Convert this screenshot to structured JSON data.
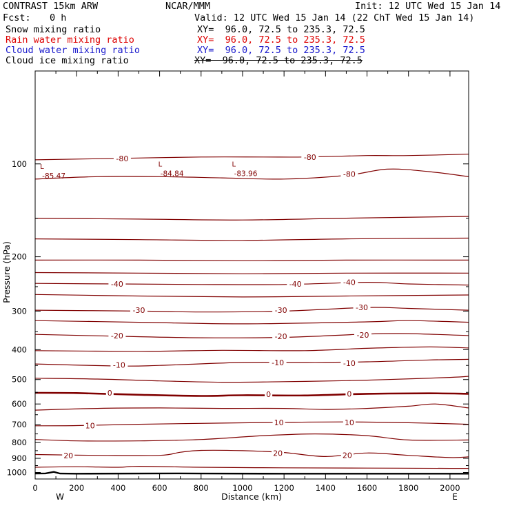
{
  "header": {
    "model": "CONTRAST 15km ARW",
    "center": "NCAR/MMM",
    "init": "Init: 12 UTC Wed 15 Jan 14",
    "fcst_label": "Fcst:",
    "fcst_value": "0 h",
    "valid": "Valid: 12 UTC Wed 15 Jan 14 (22 ChT Wed 15 Jan 14)",
    "fields": [
      {
        "label": "Snow mixing ratio",
        "xy": "XY=  96.0, 72.5 to 235.3, 72.5",
        "color": "#000000"
      },
      {
        "label": "Rain water mixing ratio",
        "xy": "XY=  96.0, 72.5 to 235.3, 72.5",
        "color": "#dd0000"
      },
      {
        "label": "Cloud water mixing ratio",
        "xy": "XY=  96.0, 72.5 to 235.3, 72.5",
        "color": "#1a1acc"
      },
      {
        "label": "Cloud ice mixing ratio",
        "xy": "XY=  96.0, 72.5 to 235.3, 72.5",
        "color": "#000000"
      }
    ]
  },
  "chart_data": {
    "type": "line",
    "xlabel": "Distance (km)",
    "ylabel": "Pressure (hPa)",
    "xlim": [
      0,
      2090
    ],
    "ylim": [
      1050,
      50
    ],
    "y_scale": "log",
    "x_ticks": [
      0,
      200,
      400,
      600,
      800,
      1000,
      1200,
      1400,
      1600,
      1800,
      2000
    ],
    "y_ticks": [
      100,
      200,
      300,
      400,
      500,
      600,
      700,
      800,
      900,
      1000
    ],
    "end_labels": {
      "left": "W",
      "right": "E"
    },
    "contour_color": "#800000",
    "ground_color": "#000000",
    "contour_labels": [
      {
        "text": "-80",
        "x": 420,
        "p": 96
      },
      {
        "text": "-80",
        "x": 1325,
        "p": 95
      },
      {
        "text": "-80",
        "x": 1515,
        "p": 108
      },
      {
        "text": "-40",
        "x": 395,
        "p": 245
      },
      {
        "text": "-40",
        "x": 1255,
        "p": 245
      },
      {
        "text": "-40",
        "x": 1515,
        "p": 242
      },
      {
        "text": "-30",
        "x": 500,
        "p": 298
      },
      {
        "text": "-30",
        "x": 1185,
        "p": 298
      },
      {
        "text": "-30",
        "x": 1575,
        "p": 292
      },
      {
        "text": "-20",
        "x": 395,
        "p": 360
      },
      {
        "text": "-20",
        "x": 1185,
        "p": 362
      },
      {
        "text": "-20",
        "x": 1580,
        "p": 358
      },
      {
        "text": "-10",
        "x": 405,
        "p": 448
      },
      {
        "text": "-10",
        "x": 1170,
        "p": 440
      },
      {
        "text": "-10",
        "x": 1515,
        "p": 442
      },
      {
        "text": "0",
        "x": 360,
        "p": 552
      },
      {
        "text": "0",
        "x": 1125,
        "p": 558
      },
      {
        "text": "0",
        "x": 1515,
        "p": 556
      },
      {
        "text": "10",
        "x": 265,
        "p": 704
      },
      {
        "text": "10",
        "x": 1175,
        "p": 688
      },
      {
        "text": "10",
        "x": 1515,
        "p": 688
      },
      {
        "text": "20",
        "x": 160,
        "p": 882
      },
      {
        "text": "20",
        "x": 1170,
        "p": 865
      },
      {
        "text": "20",
        "x": 1505,
        "p": 880
      }
    ],
    "lows": [
      {
        "value": "-85.47",
        "x": 90,
        "p": 107
      },
      {
        "value": "-84.84",
        "x": 660,
        "p": 105
      },
      {
        "value": "-83.96",
        "x": 1015,
        "p": 105
      }
    ],
    "contour_lines": [
      {
        "x": [
          0,
          400,
          800,
          1100,
          1300,
          1600,
          1800,
          2090
        ],
        "p": [
          97,
          96,
          95,
          95,
          95,
          94,
          94,
          93
        ]
      },
      {
        "x": [
          0,
          300,
          600,
          900,
          1200,
          1500,
          1700,
          1900,
          2090
        ],
        "p": [
          112,
          110,
          110,
          111,
          112,
          109,
          104,
          106,
          110
        ]
      },
      {
        "x": [
          0,
          500,
          1000,
          1500,
          2090
        ],
        "p": [
          150,
          151,
          152,
          150,
          148
        ]
      },
      {
        "x": [
          0,
          500,
          1000,
          1500,
          2090
        ],
        "p": [
          175,
          176,
          177,
          175,
          174
        ]
      },
      {
        "x": [
          0,
          500,
          1000,
          1500,
          2090
        ],
        "p": [
          205,
          205,
          206,
          205,
          205
        ]
      },
      {
        "x": [
          0,
          500,
          1000,
          1500,
          2090
        ],
        "p": [
          225,
          226,
          227,
          226,
          226
        ]
      },
      {
        "x": [
          0,
          400,
          800,
          1200,
          1600,
          1800,
          2090
        ],
        "p": [
          244,
          245,
          246,
          246,
          242,
          245,
          247
        ]
      },
      {
        "x": [
          0,
          500,
          1000,
          1500,
          2090
        ],
        "p": [
          265,
          268,
          270,
          268,
          266
        ]
      },
      {
        "x": [
          0,
          500,
          800,
          1200,
          1600,
          1800,
          2090
        ],
        "p": [
          298,
          300,
          302,
          300,
          292,
          294,
          298
        ]
      },
      {
        "x": [
          0,
          500,
          1000,
          1600,
          1800,
          2090
        ],
        "p": [
          322,
          326,
          330,
          325,
          322,
          326
        ]
      },
      {
        "x": [
          0,
          400,
          800,
          1200,
          1600,
          1800,
          2090
        ],
        "p": [
          357,
          362,
          366,
          365,
          356,
          355,
          360
        ]
      },
      {
        "x": [
          0,
          500,
          900,
          1300,
          1600,
          1900,
          2090
        ],
        "p": [
          403,
          405,
          402,
          403,
          396,
          392,
          395
        ]
      },
      {
        "x": [
          0,
          400,
          600,
          1000,
          1300,
          1600,
          1900,
          2090
        ],
        "p": [
          445,
          452,
          450,
          440,
          440,
          438,
          432,
          430
        ]
      },
      {
        "x": [
          0,
          300,
          600,
          900,
          1200,
          1500,
          1700,
          2000,
          2090
        ],
        "p": [
          495,
          498,
          505,
          510,
          508,
          504,
          500,
          492,
          488
        ]
      },
      {
        "x": [
          0,
          200,
          500,
          800,
          1000,
          1300,
          1600,
          1900,
          2090
        ],
        "p": [
          552,
          553,
          560,
          565,
          562,
          563,
          556,
          554,
          556
        ],
        "bold": true
      },
      {
        "x": [
          0,
          300,
          600,
          900,
          1200,
          1400,
          1600,
          1800,
          1930,
          2090
        ],
        "p": [
          628,
          620,
          618,
          620,
          620,
          625,
          620,
          610,
          600,
          618
        ]
      },
      {
        "x": [
          0,
          200,
          500,
          900,
          1200,
          1500,
          1800,
          2090
        ],
        "p": [
          706,
          705,
          698,
          692,
          688,
          686,
          690,
          698
        ]
      },
      {
        "x": [
          0,
          200,
          500,
          800,
          1100,
          1350,
          1600,
          1800,
          2090
        ],
        "p": [
          782,
          790,
          790,
          782,
          760,
          750,
          760,
          785,
          785
        ]
      },
      {
        "x": [
          0,
          300,
          600,
          700,
          800,
          1000,
          1200,
          1400,
          1600,
          1800,
          2000,
          2090
        ],
        "p": [
          875,
          880,
          880,
          860,
          848,
          850,
          862,
          888,
          865,
          880,
          895,
          890
        ]
      },
      {
        "x": [
          0,
          200,
          400,
          500,
          800,
          1200,
          1600,
          2000,
          2090
        ],
        "p": [
          962,
          958,
          962,
          955,
          962,
          966,
          968,
          970,
          970
        ]
      }
    ],
    "ground": {
      "x": [
        0,
        50,
        90,
        120,
        200,
        700,
        800,
        1200,
        1600,
        2090
      ],
      "p": [
        1008,
        1007,
        996,
        1008,
        1009,
        1007,
        1008,
        1009,
        1009,
        1009
      ]
    }
  }
}
